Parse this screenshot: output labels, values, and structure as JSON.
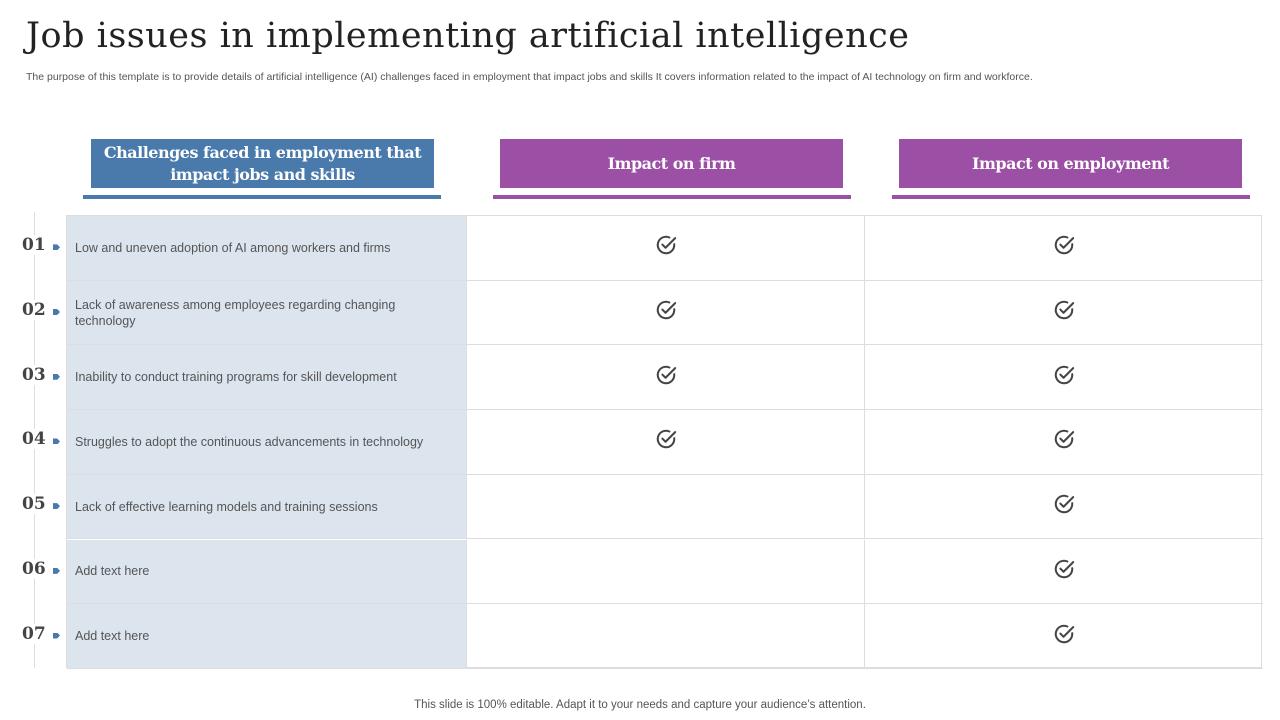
{
  "title": "Job issues in implementing artificial intelligence",
  "subtitle": "The purpose of this template is to provide details of artificial intelligence (AI) challenges faced in employment that impact jobs and skills It covers information related to the impact of AI  technology on firm and workforce.",
  "colors": {
    "blue": "#4a7aab",
    "purple": "#9b4fa5",
    "row_bg": "#dce4ee"
  },
  "headers": [
    "Challenges faced in employment that impact jobs and skills",
    "Impact on firm",
    "Impact on employment"
  ],
  "rows": [
    {
      "num": "01",
      "text": "Low and uneven  adoption of AI among workers and firms",
      "firm": true,
      "employment": true
    },
    {
      "num": "02",
      "text": "Lack of awareness  among employees regarding  changing technology",
      "firm": true,
      "employment": true
    },
    {
      "num": "03",
      "text": "Inability to conduct training programs  for skill development",
      "firm": true,
      "employment": true
    },
    {
      "num": "04",
      "text": "Struggles to adopt the continuous advancements  in technology",
      "firm": true,
      "employment": true
    },
    {
      "num": "05",
      "text": "Lack of effective  learning models and training sessions",
      "firm": false,
      "employment": true
    },
    {
      "num": "06",
      "text": "Add text here",
      "firm": false,
      "employment": true
    },
    {
      "num": "07",
      "text": "Add text here",
      "firm": false,
      "employment": true
    }
  ],
  "footer": "This slide is 100% editable. Adapt it to your needs and capture your audience’s attention."
}
